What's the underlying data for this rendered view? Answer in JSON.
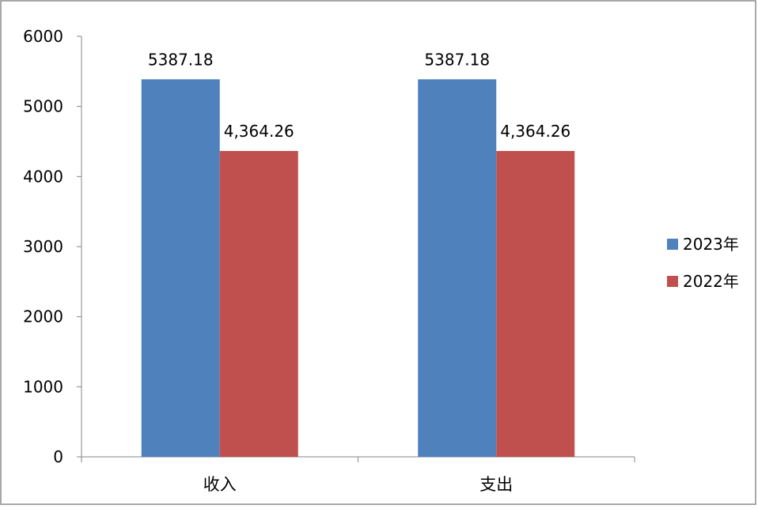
{
  "chart_data": {
    "type": "bar",
    "categories": [
      "收入",
      "支出"
    ],
    "series": [
      {
        "name": "2023年",
        "color": "#4f81bd",
        "values": [
          5387.18,
          5387.18
        ],
        "data_labels": [
          "5387.18",
          "5387.18"
        ]
      },
      {
        "name": "2022年",
        "color": "#c0504d",
        "values": [
          4364.26,
          4364.26
        ],
        "data_labels": [
          "4,364.26",
          "4,364.26"
        ]
      }
    ],
    "ylim": [
      0,
      6000
    ],
    "yticks": [
      0,
      1000,
      2000,
      3000,
      4000,
      5000,
      6000
    ],
    "ytick_labels": [
      "0",
      "1000",
      "2000",
      "3000",
      "4000",
      "5000",
      "6000"
    ],
    "title": "",
    "xlabel": "",
    "ylabel": "",
    "legend_position": "right",
    "grid": false
  }
}
